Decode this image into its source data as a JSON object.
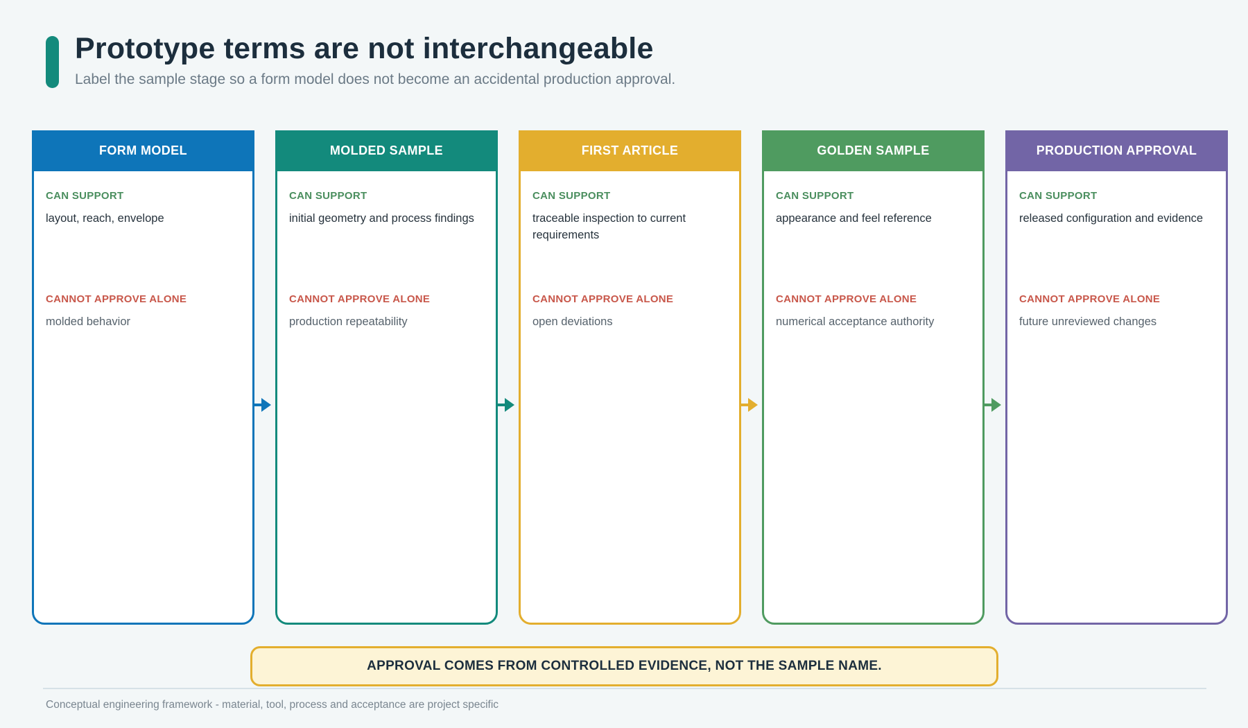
{
  "header": {
    "title": "Prototype terms are not interchangeable",
    "subtitle": "Label the sample stage so a form model does not become an accidental production approval.",
    "accent_color": "#138a7c"
  },
  "stages": [
    {
      "name": "FORM MODEL",
      "color": "#0e75b9",
      "can_label": "CAN SUPPORT",
      "can_text": "layout, reach, envelope",
      "cannot_label": "CANNOT APPROVE ALONE",
      "cannot_text": "molded behavior"
    },
    {
      "name": "MOLDED SAMPLE",
      "color": "#138a7c",
      "can_label": "CAN SUPPORT",
      "can_text": "initial geometry and process findings",
      "cannot_label": "CANNOT APPROVE ALONE",
      "cannot_text": "production repeatability"
    },
    {
      "name": "FIRST ARTICLE",
      "color": "#e3ae2e",
      "can_label": "CAN SUPPORT",
      "can_text": "traceable inspection to current requirements",
      "cannot_label": "CANNOT APPROVE ALONE",
      "cannot_text": "open deviations"
    },
    {
      "name": "GOLDEN SAMPLE",
      "color": "#4f9b60",
      "can_label": "CAN SUPPORT",
      "can_text": "appearance and feel reference",
      "cannot_label": "CANNOT APPROVE ALONE",
      "cannot_text": "numerical acceptance authority"
    },
    {
      "name": "PRODUCTION APPROVAL",
      "color": "#7265a6",
      "can_label": "CAN SUPPORT",
      "can_text": "released configuration and evidence",
      "cannot_label": "CANNOT APPROVE ALONE",
      "cannot_text": "future unreviewed changes"
    }
  ],
  "banner": {
    "text": "APPROVAL COMES FROM CONTROLLED EVIDENCE, NOT THE SAMPLE NAME."
  },
  "footer": {
    "text": "Conceptual engineering framework - material, tool, process and acceptance are project specific"
  }
}
